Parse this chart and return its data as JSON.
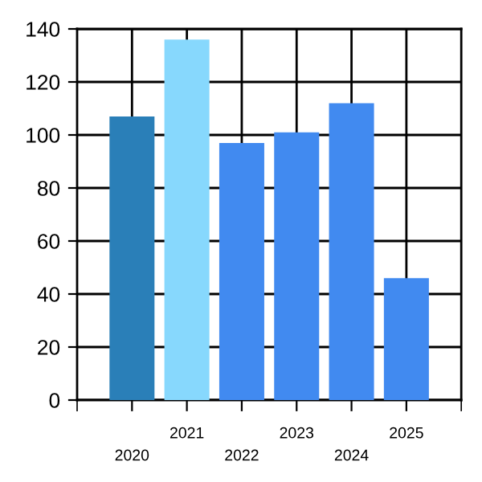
{
  "chart_data": {
    "type": "bar",
    "categories": [
      "2020",
      "2021",
      "2022",
      "2023",
      "2024",
      "2025"
    ],
    "values": [
      107,
      136,
      97,
      101,
      112,
      46
    ],
    "colors": [
      "#2a7fb8",
      "#87d8fd",
      "#418af0",
      "#418af0",
      "#418af0",
      "#418af0"
    ],
    "ylim": [
      0,
      140
    ],
    "yticks": [
      0,
      20,
      40,
      60,
      80,
      100,
      120,
      140
    ],
    "grid": true
  }
}
